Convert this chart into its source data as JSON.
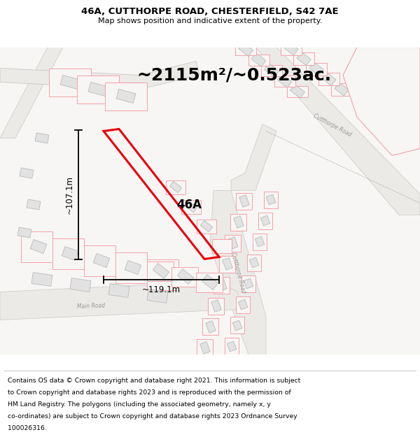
{
  "title_line1": "46A, CUTTHORPE ROAD, CHESTERFIELD, S42 7AE",
  "title_line2": "Map shows position and indicative extent of the property.",
  "area_text": "~2115m²/~0.523ac.",
  "label_46A": "46A",
  "dim_horizontal": "~119.1m",
  "dim_vertical": "~107.1m",
  "footer_lines": [
    "Contains OS data © Crown copyright and database right 2021. This information is subject",
    "to Crown copyright and database rights 2023 and is reproduced with the permission of",
    "HM Land Registry. The polygons (including the associated geometry, namely x, y",
    "co-ordinates) are subject to Crown copyright and database rights 2023 Ordnance Survey",
    "100026316."
  ],
  "red": "#e8000a",
  "lred": "#f5a0a8",
  "map_bg": "#f8f7f5",
  "road_gray": "#d8d6d2",
  "building_fill": "#e0e0e0",
  "building_edge": "#bbbbbb",
  "plot_outline_color": "#f08888"
}
